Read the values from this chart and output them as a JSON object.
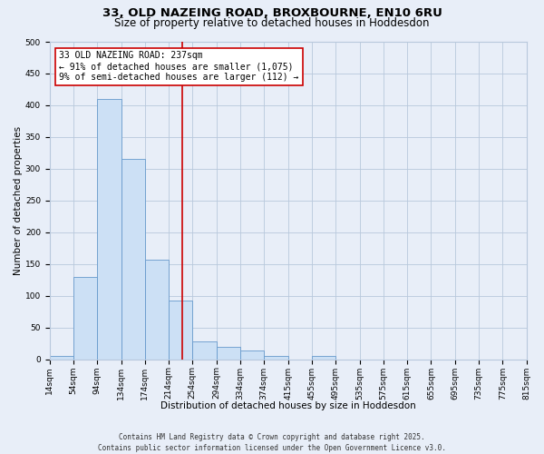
{
  "title": "33, OLD NAZEING ROAD, BROXBOURNE, EN10 6RU",
  "subtitle": "Size of property relative to detached houses in Hoddesdon",
  "xlabel": "Distribution of detached houses by size in Hoddesdon",
  "ylabel": "Number of detached properties",
  "bar_color": "#cce0f5",
  "bar_edge_color": "#6699cc",
  "background_color": "#e8eef8",
  "grid_color": "#b8c8dc",
  "bin_edges": [
    14,
    54,
    94,
    134,
    174,
    214,
    254,
    294,
    334,
    374,
    415,
    455,
    495,
    535,
    575,
    615,
    655,
    695,
    735,
    775,
    815
  ],
  "bin_labels": [
    "14sqm",
    "54sqm",
    "94sqm",
    "134sqm",
    "174sqm",
    "214sqm",
    "254sqm",
    "294sqm",
    "334sqm",
    "374sqm",
    "415sqm",
    "455sqm",
    "495sqm",
    "535sqm",
    "575sqm",
    "615sqm",
    "655sqm",
    "695sqm",
    "735sqm",
    "775sqm",
    "815sqm"
  ],
  "counts": [
    5,
    130,
    410,
    315,
    157,
    93,
    28,
    20,
    14,
    5,
    0,
    5,
    0,
    0,
    0,
    0,
    0,
    0,
    0,
    0
  ],
  "ylim": [
    0,
    500
  ],
  "yticks": [
    0,
    50,
    100,
    150,
    200,
    250,
    300,
    350,
    400,
    450,
    500
  ],
  "vline_x": 237,
  "vline_color": "#cc0000",
  "annotation_title": "33 OLD NAZEING ROAD: 237sqm",
  "annotation_line1": "← 91% of detached houses are smaller (1,075)",
  "annotation_line2": "9% of semi-detached houses are larger (112) →",
  "annotation_box_color": "#ffffff",
  "annotation_border_color": "#cc0000",
  "footer_line1": "Contains HM Land Registry data © Crown copyright and database right 2025.",
  "footer_line2": "Contains public sector information licensed under the Open Government Licence v3.0.",
  "title_fontsize": 9.5,
  "subtitle_fontsize": 8.5,
  "axis_label_fontsize": 7.5,
  "tick_fontsize": 6.5,
  "annotation_fontsize": 7.0,
  "footer_fontsize": 5.5
}
